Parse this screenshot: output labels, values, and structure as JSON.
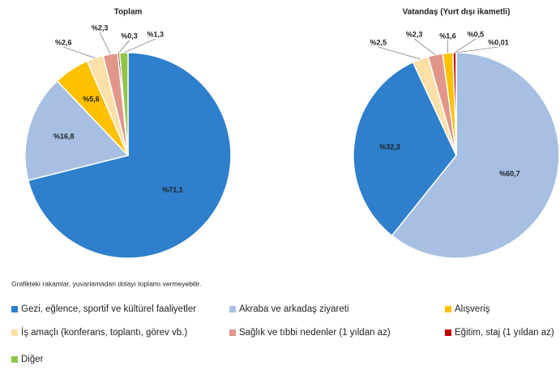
{
  "chart_data": [
    {
      "type": "pie",
      "title": "Toplam",
      "categories": [
        "Gezi, eğlence, sportif ve kültürel faaliyetler",
        "Akraba ve arkadaş ziyareti",
        "Alışveriş",
        "İş amaçlı (konferans, toplantı, görev vb.)",
        "Sağlık ve tıbbi nedenler (1 yıldan az)",
        "Eğitim, staj (1 yıldan az)",
        "Diğer"
      ],
      "values": [
        71.1,
        16.8,
        5.6,
        2.6,
        2.3,
        0.3,
        1.3
      ],
      "value_labels": [
        "%71,1",
        "%16,8",
        "%5,6",
        "%2,6",
        "%2,3",
        "%0,3",
        "%1,3"
      ],
      "colors": [
        "#2e7fcc",
        "#a6bfe3",
        "#ffc000",
        "#fde0a8",
        "#e2968a",
        "#c00000",
        "#8fc548"
      ]
    },
    {
      "type": "pie",
      "title": "Vatandaş (Yurt dışı ikametli)",
      "categories": [
        "Akraba ve arkadaş ziyareti",
        "Gezi, eğlence, sportif ve kültürel faaliyetler",
        "İş amaçlı (konferans, toplantı, görev vb.)",
        "Sağlık ve tıbbi nedenler (1 yıldan az)",
        "Alışveriş",
        "Eğitim, staj (1 yıldan az)",
        "Diğer"
      ],
      "values": [
        60.7,
        32.3,
        2.5,
        2.3,
        1.6,
        0.5,
        0.01
      ],
      "value_labels": [
        "%60,7",
        "%32,3",
        "%2,5",
        "%2,3",
        "%1,6",
        "%0,5",
        "%0,01"
      ],
      "colors": [
        "#a6bfe3",
        "#2e7fcc",
        "#fde0a8",
        "#e2968a",
        "#ffc000",
        "#c00000",
        "#8fc548"
      ]
    }
  ],
  "note": "Grafikteki rakamlar, yuvarlamadan dolayı toplamı vermeyebilir."
}
